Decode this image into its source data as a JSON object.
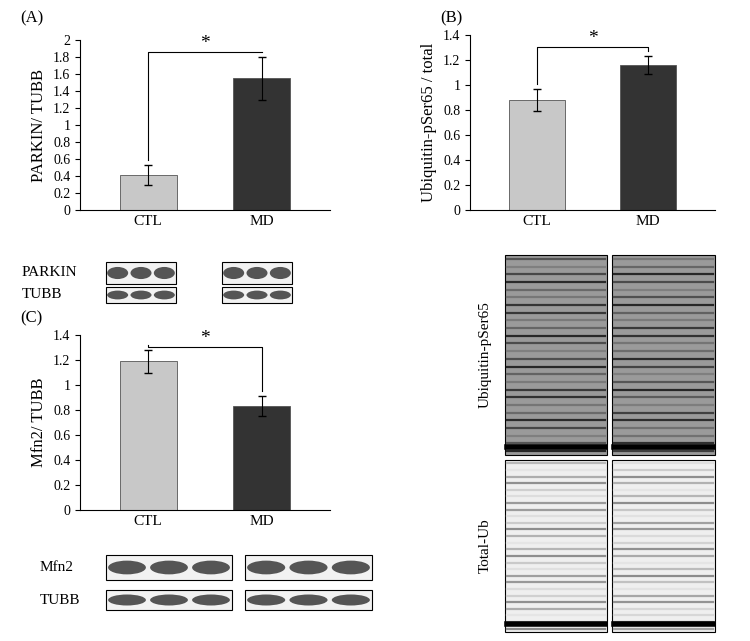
{
  "chart_data": [
    {
      "type": "bar",
      "panel": "(A)",
      "ylabel": "PARKIN/ TUBB",
      "categories": [
        "CTL",
        "MD"
      ],
      "values": [
        0.41,
        1.55
      ],
      "errors": [
        0.12,
        0.25
      ],
      "colors": [
        "#c8c8c8",
        "#333333"
      ],
      "ylim": [
        0,
        2
      ],
      "yticks": [
        0,
        0.2,
        0.4,
        0.6,
        0.8,
        1,
        1.2,
        1.4,
        1.6,
        1.8,
        2
      ],
      "significance": "*",
      "blots": [
        "PARKIN",
        "TUBB"
      ]
    },
    {
      "type": "bar",
      "panel": "(B)",
      "ylabel": "Ubiquitin-pSer65 / total",
      "categories": [
        "CTL",
        "MD"
      ],
      "values": [
        0.88,
        1.16
      ],
      "errors": [
        0.09,
        0.07
      ],
      "colors": [
        "#c8c8c8",
        "#333333"
      ],
      "ylim": [
        0,
        1.4
      ],
      "yticks": [
        0,
        0.2,
        0.4,
        0.6,
        0.8,
        1,
        1.2,
        1.4
      ],
      "significance": "*",
      "blots": [
        "Ubiquitin-pSer65",
        "Total-Ub"
      ]
    },
    {
      "type": "bar",
      "panel": "(C)",
      "ylabel": "Mfn2/ TUBB",
      "categories": [
        "CTL",
        "MD"
      ],
      "values": [
        1.19,
        0.83
      ],
      "errors": [
        0.09,
        0.08
      ],
      "colors": [
        "#c8c8c8",
        "#333333"
      ],
      "ylim": [
        0,
        1.4
      ],
      "yticks": [
        0,
        0.2,
        0.4,
        0.6,
        0.8,
        1,
        1.2,
        1.4
      ],
      "significance": "*",
      "blots": [
        "Mfn2",
        "TUBB"
      ]
    }
  ]
}
